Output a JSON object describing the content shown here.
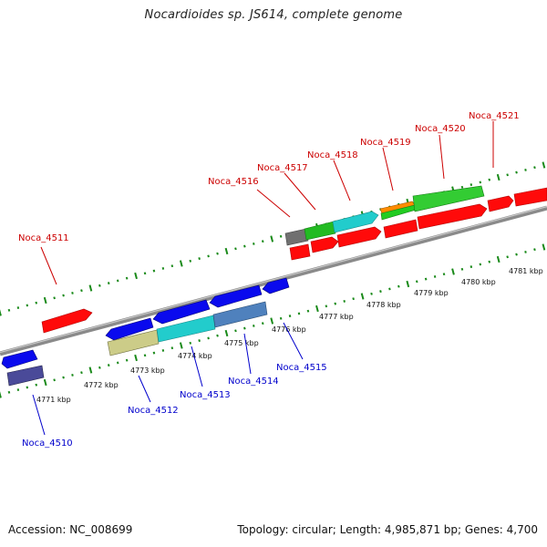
{
  "title": "Nocardioides sp. JS614, complete genome",
  "footer": {
    "accession": "Accession: NC_008699",
    "stats": "Topology: circular; Length: 4,985,871 bp; Genes: 4,700"
  },
  "axis": {
    "ticks": [
      "4771 kbp",
      "4772 kbp",
      "4773 kbp",
      "4774 kbp",
      "4775 kbp",
      "4776 kbp",
      "4777 kbp",
      "4778 kbp",
      "4779 kbp",
      "4780 kbp",
      "4781 kbp"
    ]
  },
  "colors": {
    "forward_label": "#cc0000",
    "reverse_label": "#0000cc",
    "tick": "#1a8a1a",
    "backbone": "#888888"
  },
  "genes_forward": [
    {
      "label": "Noca_4511"
    },
    {
      "label": "Noca_4516"
    },
    {
      "label": "Noca_4517"
    },
    {
      "label": "Noca_4518"
    },
    {
      "label": "Noca_4519"
    },
    {
      "label": "Noca_4520"
    },
    {
      "label": "Noca_4521"
    }
  ],
  "genes_reverse": [
    {
      "label": "Noca_4510"
    },
    {
      "label": "Noca_4512"
    },
    {
      "label": "Noca_4513"
    },
    {
      "label": "Noca_4514"
    },
    {
      "label": "Noca_4515"
    }
  ]
}
